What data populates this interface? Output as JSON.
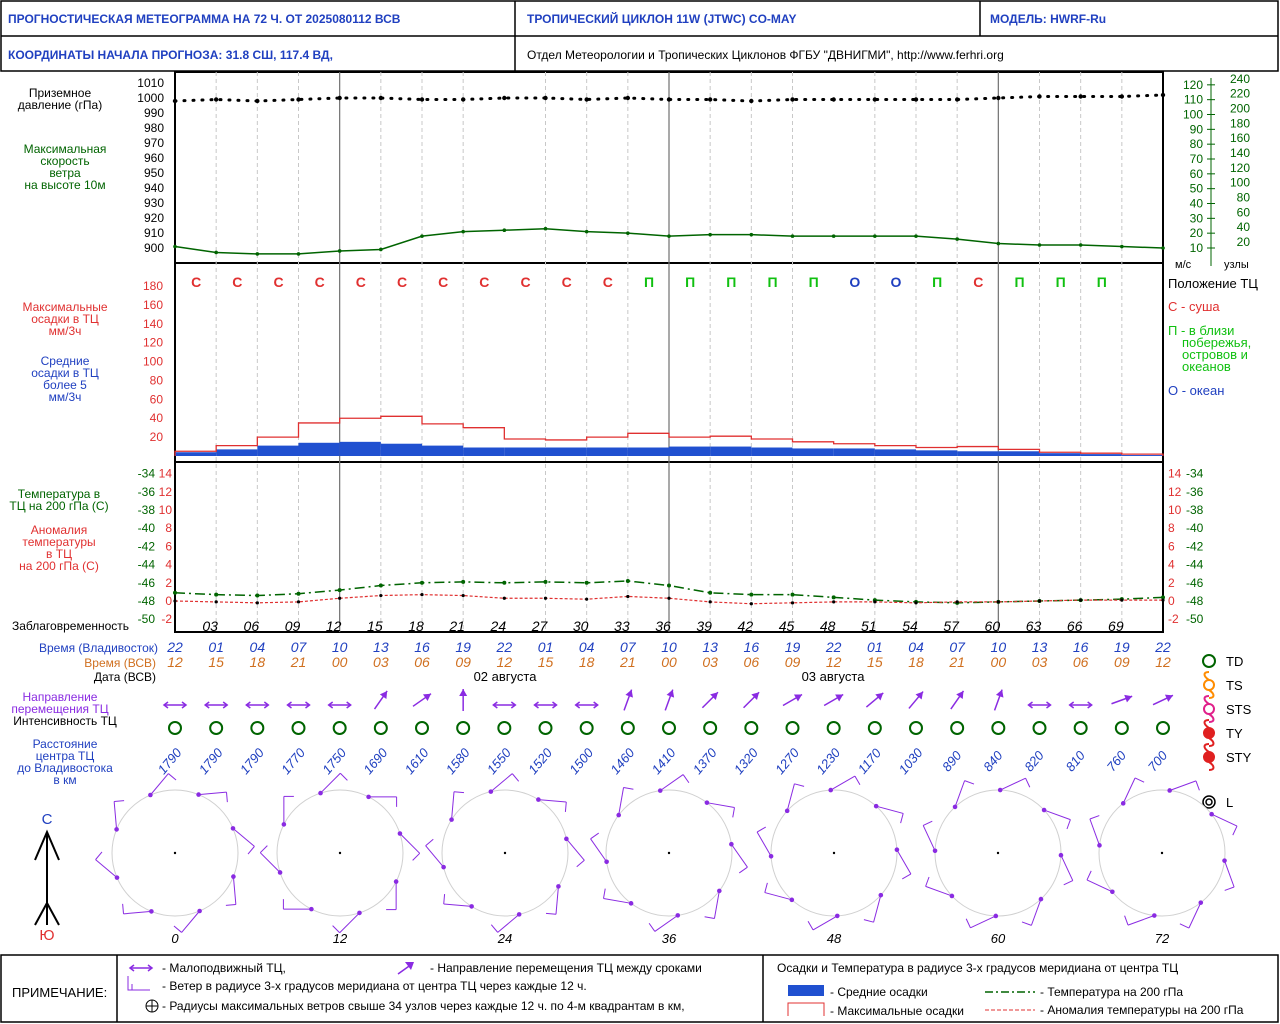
{
  "header": {
    "title": "ПРОГНОСТИЧЕСКАЯ МЕТЕОГРАММА НА 72 Ч. ОТ 2025080112 ВСВ",
    "cyclone": "ТРОПИЧЕСКИЙ ЦИКЛОН  11W (JTWC)  CO-MAY",
    "model": "МОДЕЛЬ:   HWRF-Ru",
    "coords": "КООРДИНАТЫ НАЧАЛА ПРОГНОЗА:  31.8  СШ,    117.4  ВД,",
    "org": "Отдел Метеорологии и Тропических Циклонов ФГБУ \"ДВНИГМИ\",  http://www.ferhri.org"
  },
  "colors": {
    "blue": "#2040c0",
    "green": "#006400",
    "red": "#e03030",
    "purple": "#8a2be2",
    "bright_green": "#10c010",
    "orange": "#d07020",
    "bar_blue": "#2050d0"
  },
  "left_labels": {
    "pressure": [
      "Приземное",
      "давление (гПа)"
    ],
    "wind": [
      "Максимальная",
      "скорость",
      "ветра",
      "на высоте 10м"
    ],
    "max_precip": [
      "Максимальные",
      "осадки в ТЦ",
      "мм/3ч"
    ],
    "avg_precip": [
      "Средние",
      "осадки в ТЦ",
      "более 5",
      "мм/3ч"
    ],
    "temp": [
      "Температура в",
      "ТЦ на 200 гПа (С)"
    ],
    "anomaly": [
      "Аномалия",
      "температуры",
      "в ТЦ",
      "на 200 гПа (С)"
    ]
  },
  "right_labels": {
    "wind_units_ms": "м/с",
    "wind_units_kt": "узлы",
    "position_title": "Положение ТЦ",
    "land": "С - суша",
    "coast": [
      "П - в близи",
      "побережья,",
      "островов и",
      "океанов"
    ],
    "ocean": "О - океан"
  },
  "row_labels": {
    "lead": "Заблаговременность",
    "time_vl": "Время (Владивосток)",
    "time_utc": "Время (ВСВ)",
    "date": "Дата (ВСВ)",
    "direction": [
      "Направление",
      "перемещения ТЦ"
    ],
    "intensity": "Интенсивность ТЦ",
    "distance": [
      "Расстояние",
      "центра ТЦ",
      "до Владивостока",
      "в км"
    ]
  },
  "dates": [
    "02 августа",
    "03 августа"
  ],
  "chart_data": [
    {
      "type": "line",
      "name": "pressure",
      "ylabel": "Приземное давление (гПа)",
      "ylim": [
        900,
        1010
      ],
      "yticks": [
        1010,
        1000,
        990,
        980,
        970,
        960,
        950,
        940,
        930,
        920,
        910,
        900
      ],
      "x": [
        0,
        3,
        6,
        9,
        12,
        15,
        18,
        21,
        24,
        27,
        30,
        33,
        36,
        39,
        42,
        45,
        48,
        51,
        54,
        57,
        60,
        63,
        66,
        69,
        72
      ],
      "values": [
        998,
        999,
        998,
        999,
        1000,
        1000,
        999,
        999,
        1000,
        1000,
        999,
        1000,
        999,
        999,
        998,
        999,
        999,
        999,
        999,
        999,
        1000,
        1001,
        1001,
        1001,
        1002
      ]
    },
    {
      "type": "line",
      "name": "max_wind",
      "ylabel": "м/с",
      "ylim": [
        0,
        120
      ],
      "yticks_ms": [
        120,
        110,
        100,
        90,
        80,
        70,
        60,
        50,
        40,
        30,
        20,
        10
      ],
      "yticks_kt": [
        240,
        220,
        200,
        180,
        160,
        140,
        120,
        100,
        80,
        60,
        40,
        20
      ],
      "x": [
        0,
        3,
        6,
        9,
        12,
        15,
        18,
        21,
        24,
        27,
        30,
        33,
        36,
        39,
        42,
        45,
        48,
        51,
        54,
        57,
        60,
        63,
        66,
        69,
        72
      ],
      "values": [
        11,
        7,
        6,
        6,
        8,
        9,
        18,
        21,
        22,
        23,
        21,
        20,
        18,
        19,
        19,
        18,
        18,
        18,
        18,
        16,
        13,
        12,
        12,
        11,
        10
      ]
    },
    {
      "type": "bar",
      "name": "precipitation",
      "ylim": [
        0,
        190
      ],
      "yticks": [
        180,
        160,
        140,
        120,
        100,
        80,
        60,
        40,
        20
      ],
      "x": [
        0,
        3,
        6,
        9,
        12,
        15,
        18,
        21,
        24,
        27,
        30,
        33,
        36,
        39,
        42,
        45,
        48,
        51,
        54,
        57,
        60,
        63,
        66,
        69
      ],
      "series": [
        {
          "name": "max",
          "values": [
            5,
            11,
            20,
            35,
            40,
            42,
            34,
            30,
            18,
            17,
            20,
            24,
            20,
            21,
            18,
            15,
            13,
            11,
            9,
            10,
            7,
            4,
            3,
            2
          ]
        },
        {
          "name": "avg",
          "values": [
            4,
            7,
            11,
            14,
            15,
            13,
            11,
            9,
            9,
            9,
            9,
            9,
            10,
            10,
            9,
            8,
            8,
            7,
            6,
            5,
            5,
            3,
            2,
            1
          ]
        }
      ],
      "position": [
        "С",
        "С",
        "С",
        "С",
        "С",
        "С",
        "С",
        "С",
        "С",
        "С",
        "С",
        "П",
        "П",
        "П",
        "П",
        "П",
        "О",
        "О",
        "П",
        "С",
        "П",
        "П",
        "П"
      ]
    },
    {
      "type": "line",
      "name": "temperature",
      "ylim_temp": [
        -50,
        -34
      ],
      "yticks_temp": [
        -34,
        -36,
        -38,
        -40,
        -42,
        -44,
        -46,
        -48,
        -50
      ],
      "ylim_anom": [
        -2,
        14
      ],
      "yticks_anom": [
        14,
        12,
        10,
        8,
        6,
        4,
        2,
        0,
        -2
      ],
      "x": [
        0,
        3,
        6,
        9,
        12,
        15,
        18,
        21,
        24,
        27,
        30,
        33,
        36,
        39,
        42,
        45,
        48,
        51,
        54,
        57,
        60,
        63,
        66,
        69,
        72
      ],
      "series": [
        {
          "name": "temp",
          "values": [
            -47.1,
            -47.3,
            -47.4,
            -47.2,
            -46.8,
            -46.3,
            -46.0,
            -45.9,
            -46.0,
            -45.9,
            -46.0,
            -45.8,
            -46.3,
            -47.1,
            -47.3,
            -47.3,
            -47.6,
            -47.9,
            -48.1,
            -48.2,
            -48.1,
            -48.0,
            -47.9,
            -47.8,
            -47.6
          ]
        },
        {
          "name": "anomaly",
          "values": [
            0.0,
            -0.1,
            -0.2,
            -0.1,
            0.3,
            0.6,
            0.7,
            0.6,
            0.3,
            0.3,
            0.2,
            0.5,
            0.3,
            -0.1,
            -0.3,
            -0.2,
            -0.1,
            -0.1,
            -0.2,
            -0.1,
            -0.1,
            0.0,
            0.1,
            0.1,
            0.1
          ]
        }
      ]
    }
  ],
  "lead_times": [
    "03",
    "06",
    "09",
    "12",
    "15",
    "18",
    "21",
    "24",
    "27",
    "30",
    "33",
    "36",
    "39",
    "42",
    "45",
    "48",
    "51",
    "54",
    "57",
    "60",
    "63",
    "66",
    "69"
  ],
  "time_vl": [
    "22",
    "01",
    "04",
    "07",
    "10",
    "13",
    "16",
    "19",
    "22",
    "01",
    "04",
    "07",
    "10",
    "13",
    "16",
    "19",
    "22",
    "01",
    "04",
    "07",
    "10",
    "13",
    "16",
    "19",
    "22"
  ],
  "time_utc": [
    "12",
    "15",
    "18",
    "21",
    "00",
    "03",
    "06",
    "09",
    "12",
    "15",
    "18",
    "21",
    "00",
    "03",
    "06",
    "09",
    "12",
    "15",
    "18",
    "21",
    "00",
    "03",
    "06",
    "09",
    "12"
  ],
  "direction": [
    null,
    null,
    null,
    null,
    null,
    35,
    55,
    0,
    null,
    null,
    null,
    20,
    20,
    45,
    45,
    60,
    60,
    50,
    40,
    35,
    20,
    null,
    null,
    70,
    65
  ],
  "distances": [
    "1790",
    "1790",
    "1790",
    "1770",
    "1750",
    "1690",
    "1610",
    "1580",
    "1550",
    "1520",
    "1500",
    "1460",
    "1410",
    "1370",
    "1320",
    "1270",
    "1230",
    "1170",
    "1030",
    "890",
    "840",
    "820",
    "810",
    "760",
    "700"
  ],
  "intensity_legend": [
    "TD",
    "TS",
    "STS",
    "TY",
    "STY",
    "L"
  ],
  "compass": {
    "north": "С",
    "south": "Ю"
  },
  "wind_rose_labels": [
    "0",
    "12",
    "24",
    "36",
    "48",
    "60",
    "72"
  ],
  "footer": {
    "note_label": "ПРИМЕЧАНИЕ:",
    "stationary": "- Малоподвижный ТЦ,",
    "direction": "- Направление перемещения ТЦ между сроками",
    "wind": "- Ветер в радиусе 3-х градусов меридиана от центра ТЦ через каждые 12 ч.",
    "radii": "- Радиусы максимальных ветров свыше 34 узлов через каждые 12 ч. по 4-м квадрантам в км,",
    "right_title": "Осадки и Температура в радиусе 3-х градусов меридиана от центра ТЦ",
    "avg": "- Средние осадки",
    "max": "- Максимальные осадки",
    "temp": "- Температура на 200 гПа",
    "anom": "- Аномалия температуры на 200 гПа"
  }
}
